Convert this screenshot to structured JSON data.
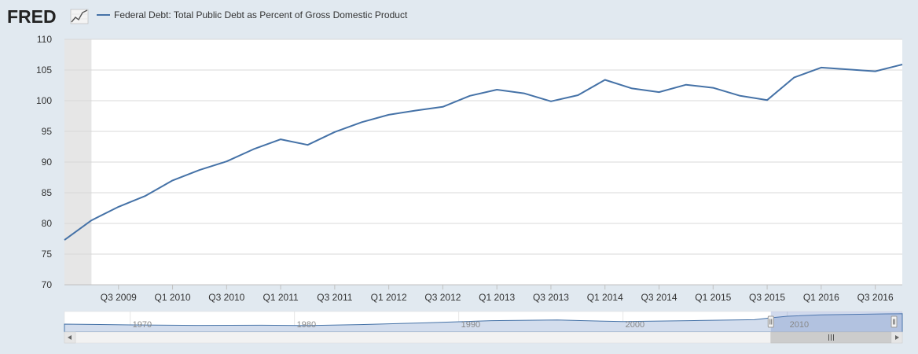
{
  "header": {
    "logo_text": "FRED",
    "logo_icon": "chart-line-icon"
  },
  "colors": {
    "background": "#e1e9f0",
    "plot_background": "#ffffff",
    "series": "#4572a7",
    "grid": "#d8d8d8",
    "shade": "#e6e6e6"
  },
  "chart_data": {
    "type": "line",
    "title": "",
    "xlabel": "",
    "ylabel": "",
    "legend": [
      "Federal Debt: Total Public Debt as Percent of Gross Domestic Product"
    ],
    "ylim": [
      70,
      110
    ],
    "yticks": [
      70,
      75,
      80,
      85,
      90,
      95,
      100,
      105,
      110
    ],
    "grid": true,
    "shaded_period": [
      "Q1 2009",
      "Q2 2009"
    ],
    "x": [
      "Q1 2009",
      "Q2 2009",
      "Q3 2009",
      "Q4 2009",
      "Q1 2010",
      "Q2 2010",
      "Q3 2010",
      "Q4 2010",
      "Q1 2011",
      "Q2 2011",
      "Q3 2011",
      "Q4 2011",
      "Q1 2012",
      "Q2 2012",
      "Q3 2012",
      "Q4 2012",
      "Q1 2013",
      "Q2 2013",
      "Q3 2013",
      "Q4 2013",
      "Q1 2014",
      "Q2 2014",
      "Q3 2014",
      "Q4 2014",
      "Q1 2015",
      "Q2 2015",
      "Q3 2015",
      "Q4 2015",
      "Q1 2016",
      "Q2 2016",
      "Q3 2016",
      "Q4 2016"
    ],
    "series": [
      {
        "name": "Federal Debt: Total Public Debt as Percent of Gross Domestic Product",
        "values": [
          77.3,
          80.5,
          82.7,
          84.5,
          87.0,
          88.7,
          90.1,
          92.1,
          93.7,
          92.8,
          94.9,
          96.5,
          97.7,
          98.4,
          99.0,
          100.8,
          101.8,
          101.2,
          99.9,
          100.9,
          103.4,
          102.0,
          101.4,
          102.6,
          102.1,
          100.8,
          100.1,
          103.8,
          105.4,
          105.1,
          104.8,
          105.9
        ]
      }
    ],
    "xtick_labels": [
      "Q3 2009",
      "Q1 2010",
      "Q3 2010",
      "Q1 2011",
      "Q3 2011",
      "Q1 2012",
      "Q3 2012",
      "Q1 2013",
      "Q3 2013",
      "Q1 2014",
      "Q3 2014",
      "Q1 2015",
      "Q3 2015",
      "Q1 2016",
      "Q3 2016"
    ],
    "xtick_positions": [
      "Q3 2009",
      "Q1 2010",
      "Q3 2010",
      "Q1 2011",
      "Q3 2011",
      "Q1 2012",
      "Q3 2012",
      "Q1 2013",
      "Q3 2013",
      "Q1 2014",
      "Q3 2014",
      "Q1 2015",
      "Q3 2015",
      "Q1 2016",
      "Q3 2016"
    ]
  },
  "navigator": {
    "labels": [
      "1970",
      "1980",
      "1990",
      "2000",
      "2010"
    ],
    "label_years": [
      1970,
      1980,
      1990,
      2000,
      2010
    ],
    "year_range": [
      1966,
      2017
    ],
    "profile": [
      [
        1966,
        40
      ],
      [
        1970,
        35
      ],
      [
        1974,
        32
      ],
      [
        1978,
        33
      ],
      [
        1981,
        31
      ],
      [
        1984,
        37
      ],
      [
        1988,
        48
      ],
      [
        1992,
        62
      ],
      [
        1996,
        66
      ],
      [
        2000,
        56
      ],
      [
        2004,
        62
      ],
      [
        2008,
        68
      ],
      [
        2009,
        80
      ],
      [
        2010,
        90
      ],
      [
        2012,
        99
      ],
      [
        2014,
        102
      ],
      [
        2016,
        105
      ],
      [
        2017,
        106
      ]
    ],
    "selected_range": [
      2009,
      2017
    ]
  }
}
